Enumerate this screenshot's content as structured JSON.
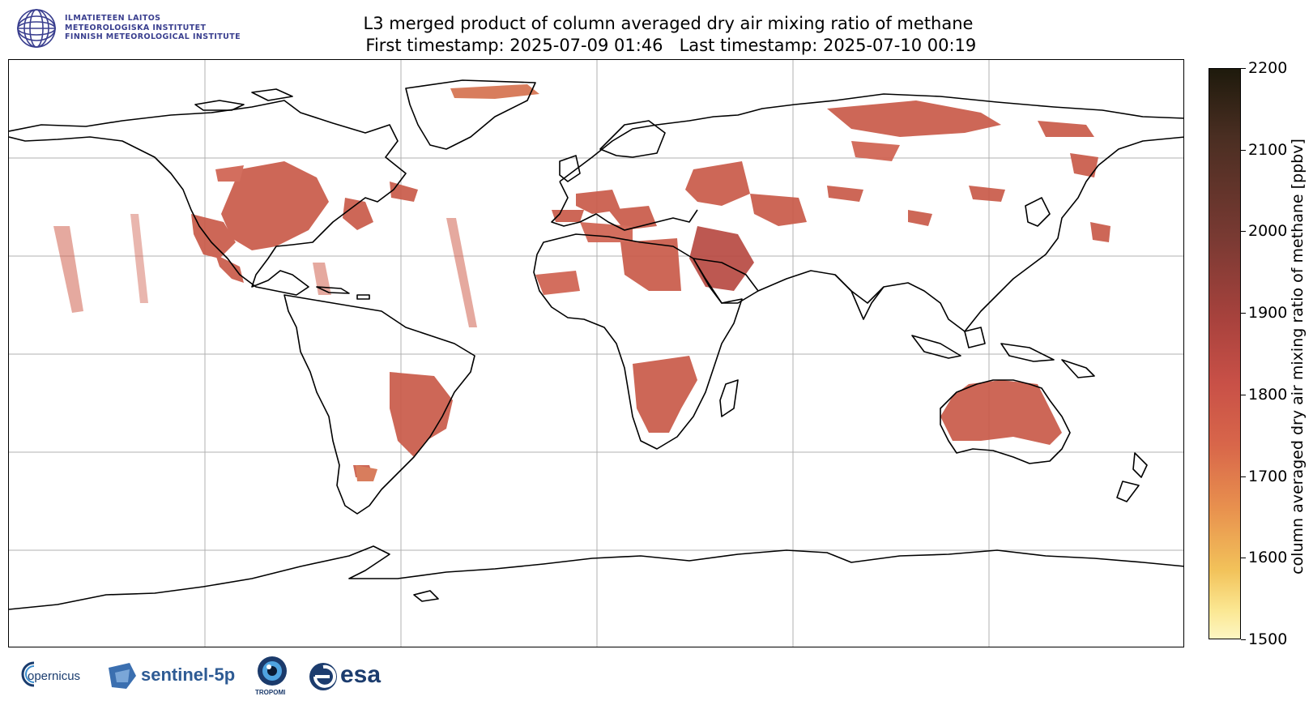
{
  "header": {
    "logo": {
      "line1": "ILMATIETEEN LAITOS",
      "line2": "METEOROLOGISKA INSTITUTET",
      "line3": "FINNISH METEOROLOGICAL INSTITUTE"
    },
    "title_line1": "L3 merged product of column averaged dry air mixing ratio of methane",
    "title_line2": " First timestamp: 2025-07-09 01:46   Last timestamp: 2025-07-10 00:19"
  },
  "colorbar": {
    "label": "column averaged dry air mixing ratio of methane [ppbv]",
    "min": 1500,
    "max": 2200,
    "ticks": [
      "2200",
      "2100",
      "2000",
      "1900",
      "1800",
      "1700",
      "1600",
      "1500"
    ],
    "colors": {
      "low": "#fdf6c2",
      "mid": "#c85047",
      "high": "#1e1a0c"
    }
  },
  "map": {
    "projection": "equirectangular",
    "gridlines": true,
    "data_color": "#c95a48"
  },
  "footer": {
    "copernicus": "opernicus",
    "sentinel": "sentinel-5p",
    "tropomi": "TROPOMI",
    "esa": "esa"
  }
}
